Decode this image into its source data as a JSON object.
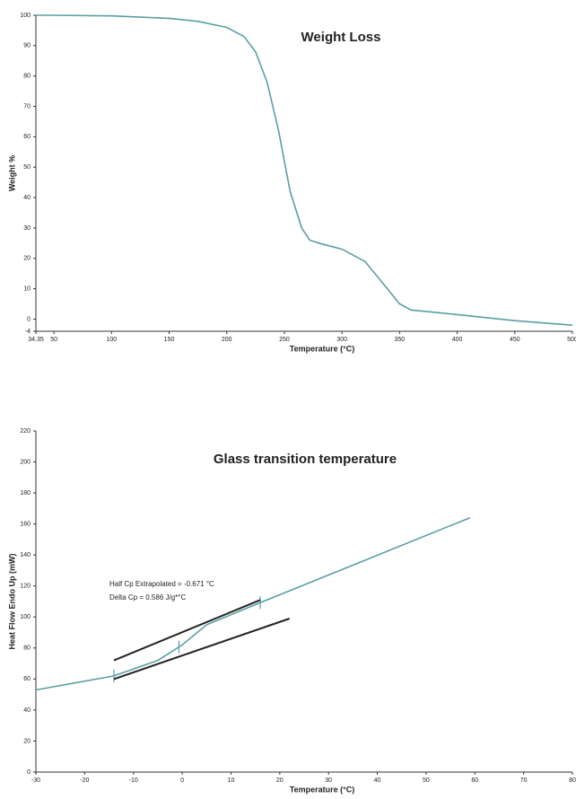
{
  "chart_data": [
    {
      "type": "line",
      "title": "Weight Loss",
      "x_label": "Temperature (°C)",
      "y_label": "Weight %",
      "xlim": [
        34.35,
        500
      ],
      "xticks": [
        34.35,
        50,
        100,
        150,
        200,
        250,
        300,
        350,
        400,
        450,
        500
      ],
      "ylim": [
        -4,
        100
      ],
      "yticks": [
        -4,
        0,
        10,
        20,
        30,
        40,
        50,
        60,
        70,
        80,
        90,
        100
      ],
      "series": [
        {
          "color": "#5b9ea4",
          "x": [
            34.35,
            50,
            100,
            150,
            175,
            200,
            215,
            225,
            235,
            245,
            255,
            265,
            272,
            280,
            300,
            320,
            335,
            350,
            360,
            400,
            450,
            500
          ],
          "values": [
            100,
            100,
            99.8,
            99,
            98,
            96,
            93,
            88,
            78,
            62,
            42,
            30,
            26,
            25,
            23,
            19,
            12,
            5,
            3,
            1.5,
            -0.5,
            -2
          ]
        }
      ]
    },
    {
      "type": "line",
      "title": "Glass transition temperature",
      "x_label": "Temperature (°C)",
      "y_label": "Heat Flow Endo Up (mW)",
      "xlim": [
        -30,
        80
      ],
      "xticks": [
        -30,
        -20,
        -10,
        0,
        10,
        20,
        30,
        40,
        50,
        60,
        70,
        80
      ],
      "ylim": [
        0,
        220
      ],
      "yticks": [
        0,
        20,
        40,
        60,
        80,
        100,
        120,
        140,
        160,
        180,
        200,
        220
      ],
      "annotations": [
        "Half Cp Extrapolated = -0.671 °C",
        "Delta Cp = 0.586 J/g*°C"
      ],
      "series": [
        {
          "color": "#5b9ea4",
          "x": [
            -30,
            -14,
            -5,
            0,
            5,
            15,
            59
          ],
          "values": [
            53,
            62,
            72,
            82,
            95,
            108,
            164
          ],
          "markers_x": [
            -14,
            -0.671,
            16
          ]
        },
        {
          "color": "#222222",
          "x": [
            -14,
            16
          ],
          "values": [
            72,
            111
          ]
        },
        {
          "color": "#222222",
          "x": [
            -14,
            22
          ],
          "values": [
            60,
            99
          ]
        }
      ]
    }
  ]
}
